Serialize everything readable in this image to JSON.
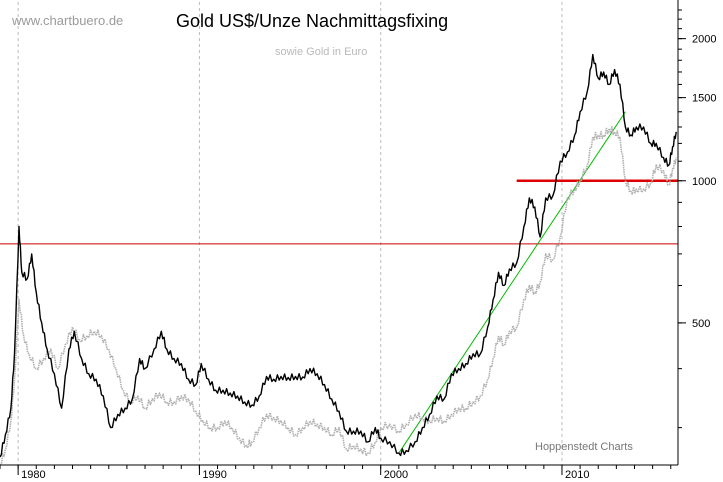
{
  "chart_data": {
    "type": "line",
    "title": "Gold US$/Unze Nachmittagsfixing",
    "subtitle": "sowie Gold in Euro",
    "watermark": "www.chartbuero.de",
    "source": "Hoppenstedt Charts",
    "y_scale": "log",
    "ylim": [
      250,
      2300
    ],
    "xlim": [
      1979.0,
      2016.4
    ],
    "x_ticks": [
      {
        "value": 1980,
        "label": "1980"
      },
      {
        "value": 1990,
        "label": "1990"
      },
      {
        "value": 2000,
        "label": "2000"
      },
      {
        "value": 2010,
        "label": "2010"
      }
    ],
    "y_ticks": [
      {
        "value": 500,
        "label": "500"
      },
      {
        "value": 1000,
        "label": "1000"
      },
      {
        "value": 1500,
        "label": "1500"
      },
      {
        "value": 2000,
        "label": "2000"
      }
    ],
    "y_grid": false,
    "x_grid": true,
    "series": [
      {
        "color": "#000000",
        "points": [
          [
            1979.0,
            260
          ],
          [
            1979.3,
            290
          ],
          [
            1979.6,
            330
          ],
          [
            1979.8,
            430
          ],
          [
            1980.05,
            800
          ],
          [
            1980.2,
            640
          ],
          [
            1980.5,
            620
          ],
          [
            1980.75,
            700
          ],
          [
            1981.0,
            580
          ],
          [
            1981.3,
            500
          ],
          [
            1981.6,
            440
          ],
          [
            1982.0,
            390
          ],
          [
            1982.4,
            330
          ],
          [
            1982.8,
            440
          ],
          [
            1983.1,
            480
          ],
          [
            1983.5,
            420
          ],
          [
            1983.9,
            390
          ],
          [
            1984.3,
            380
          ],
          [
            1984.7,
            350
          ],
          [
            1985.1,
            300
          ],
          [
            1985.5,
            320
          ],
          [
            1985.9,
            330
          ],
          [
            1986.3,
            345
          ],
          [
            1986.7,
            420
          ],
          [
            1987.0,
            400
          ],
          [
            1987.5,
            440
          ],
          [
            1987.9,
            480
          ],
          [
            1988.2,
            440
          ],
          [
            1988.6,
            420
          ],
          [
            1989.0,
            410
          ],
          [
            1989.4,
            380
          ],
          [
            1989.8,
            370
          ],
          [
            1990.1,
            410
          ],
          [
            1990.5,
            380
          ],
          [
            1990.9,
            360
          ],
          [
            1991.3,
            360
          ],
          [
            1991.7,
            355
          ],
          [
            1992.1,
            350
          ],
          [
            1992.5,
            340
          ],
          [
            1992.9,
            335
          ],
          [
            1993.3,
            350
          ],
          [
            1993.7,
            385
          ],
          [
            1994.1,
            380
          ],
          [
            1994.5,
            385
          ],
          [
            1994.9,
            383
          ],
          [
            1995.3,
            385
          ],
          [
            1995.7,
            384
          ],
          [
            1996.1,
            400
          ],
          [
            1996.5,
            390
          ],
          [
            1996.9,
            370
          ],
          [
            1997.3,
            345
          ],
          [
            1997.7,
            325
          ],
          [
            1998.1,
            295
          ],
          [
            1998.5,
            295
          ],
          [
            1998.9,
            295
          ],
          [
            1999.3,
            280
          ],
          [
            1999.7,
            300
          ],
          [
            2000.0,
            285
          ],
          [
            2000.5,
            280
          ],
          [
            2001.0,
            265
          ],
          [
            2001.4,
            268
          ],
          [
            2001.9,
            280
          ],
          [
            2002.3,
            300
          ],
          [
            2002.7,
            320
          ],
          [
            2003.1,
            350
          ],
          [
            2003.5,
            345
          ],
          [
            2003.9,
            390
          ],
          [
            2004.3,
            400
          ],
          [
            2004.7,
            410
          ],
          [
            2005.1,
            430
          ],
          [
            2005.5,
            430
          ],
          [
            2005.9,
            490
          ],
          [
            2006.2,
            560
          ],
          [
            2006.5,
            640
          ],
          [
            2006.8,
            600
          ],
          [
            2007.1,
            650
          ],
          [
            2007.5,
            670
          ],
          [
            2007.9,
            800
          ],
          [
            2008.2,
            920
          ],
          [
            2008.5,
            880
          ],
          [
            2008.8,
            760
          ],
          [
            2009.1,
            920
          ],
          [
            2009.5,
            930
          ],
          [
            2009.9,
            1100
          ],
          [
            2010.3,
            1150
          ],
          [
            2010.7,
            1250
          ],
          [
            2011.0,
            1400
          ],
          [
            2011.4,
            1550
          ],
          [
            2011.7,
            1850
          ],
          [
            2012.0,
            1650
          ],
          [
            2012.3,
            1700
          ],
          [
            2012.6,
            1600
          ],
          [
            2012.9,
            1720
          ],
          [
            2013.2,
            1600
          ],
          [
            2013.5,
            1300
          ],
          [
            2013.8,
            1250
          ],
          [
            2014.1,
            1300
          ],
          [
            2014.5,
            1300
          ],
          [
            2014.9,
            1200
          ],
          [
            2015.2,
            1200
          ],
          [
            2015.6,
            1120
          ],
          [
            2015.9,
            1080
          ],
          [
            2016.1,
            1180
          ],
          [
            2016.3,
            1270
          ]
        ]
      },
      {
        "color": "#b0b0b0",
        "points": [
          [
            1979.0,
            250
          ],
          [
            1979.3,
            270
          ],
          [
            1979.6,
            310
          ],
          [
            1979.8,
            380
          ],
          [
            1980.05,
            560
          ],
          [
            1980.3,
            470
          ],
          [
            1980.6,
            430
          ],
          [
            1981.0,
            400
          ],
          [
            1981.4,
            420
          ],
          [
            1981.8,
            440
          ],
          [
            1982.2,
            400
          ],
          [
            1982.6,
            450
          ],
          [
            1983.0,
            490
          ],
          [
            1983.4,
            460
          ],
          [
            1983.8,
            470
          ],
          [
            1984.2,
            480
          ],
          [
            1984.6,
            470
          ],
          [
            1985.0,
            440
          ],
          [
            1985.4,
            400
          ],
          [
            1985.8,
            360
          ],
          [
            1986.2,
            340
          ],
          [
            1986.6,
            350
          ],
          [
            1987.0,
            330
          ],
          [
            1987.4,
            345
          ],
          [
            1987.8,
            355
          ],
          [
            1988.2,
            340
          ],
          [
            1988.6,
            340
          ],
          [
            1989.0,
            350
          ],
          [
            1989.4,
            345
          ],
          [
            1989.8,
            325
          ],
          [
            1990.2,
            310
          ],
          [
            1990.6,
            300
          ],
          [
            1991.0,
            300
          ],
          [
            1991.4,
            310
          ],
          [
            1991.8,
            300
          ],
          [
            1992.2,
            285
          ],
          [
            1992.6,
            275
          ],
          [
            1992.9,
            280
          ],
          [
            1993.3,
            300
          ],
          [
            1993.7,
            320
          ],
          [
            1994.1,
            315
          ],
          [
            1994.5,
            310
          ],
          [
            1994.9,
            300
          ],
          [
            1995.3,
            290
          ],
          [
            1995.7,
            300
          ],
          [
            1996.1,
            310
          ],
          [
            1996.5,
            305
          ],
          [
            1996.9,
            300
          ],
          [
            1997.3,
            290
          ],
          [
            1997.7,
            300
          ],
          [
            1998.1,
            270
          ],
          [
            1998.5,
            275
          ],
          [
            1998.9,
            270
          ],
          [
            1999.3,
            265
          ],
          [
            1999.7,
            280
          ],
          [
            2000.0,
            300
          ],
          [
            2000.5,
            305
          ],
          [
            2001.0,
            295
          ],
          [
            2001.4,
            305
          ],
          [
            2001.9,
            320
          ],
          [
            2002.3,
            315
          ],
          [
            2002.7,
            310
          ],
          [
            2003.1,
            315
          ],
          [
            2003.5,
            310
          ],
          [
            2003.9,
            320
          ],
          [
            2004.3,
            330
          ],
          [
            2004.7,
            330
          ],
          [
            2005.1,
            340
          ],
          [
            2005.5,
            350
          ],
          [
            2005.9,
            380
          ],
          [
            2006.2,
            420
          ],
          [
            2006.5,
            470
          ],
          [
            2006.8,
            450
          ],
          [
            2007.1,
            480
          ],
          [
            2007.5,
            490
          ],
          [
            2007.9,
            560
          ],
          [
            2008.2,
            600
          ],
          [
            2008.5,
            580
          ],
          [
            2008.8,
            610
          ],
          [
            2009.1,
            700
          ],
          [
            2009.5,
            680
          ],
          [
            2009.9,
            760
          ],
          [
            2010.3,
            920
          ],
          [
            2010.7,
            960
          ],
          [
            2011.0,
            1000
          ],
          [
            2011.4,
            1080
          ],
          [
            2011.7,
            1240
          ],
          [
            2012.0,
            1250
          ],
          [
            2012.3,
            1250
          ],
          [
            2012.6,
            1290
          ],
          [
            2012.9,
            1270
          ],
          [
            2013.2,
            1240
          ],
          [
            2013.5,
            1000
          ],
          [
            2013.8,
            950
          ],
          [
            2014.1,
            960
          ],
          [
            2014.5,
            960
          ],
          [
            2014.9,
            990
          ],
          [
            2015.2,
            1080
          ],
          [
            2015.6,
            1050
          ],
          [
            2015.9,
            980
          ],
          [
            2016.1,
            1060
          ],
          [
            2016.3,
            1120
          ]
        ]
      }
    ],
    "reference_lines": [
      {
        "type": "horizontal",
        "y": 735,
        "color": "#cc0000"
      },
      {
        "type": "horizontal_segment",
        "y": 1000,
        "x": [
          2007.5,
          2016.4
        ],
        "color": "#dd0000"
      },
      {
        "type": "trend",
        "points": [
          [
            2001.0,
            265
          ],
          [
            2013.5,
            1400
          ]
        ],
        "color": "#00bb00"
      }
    ]
  }
}
